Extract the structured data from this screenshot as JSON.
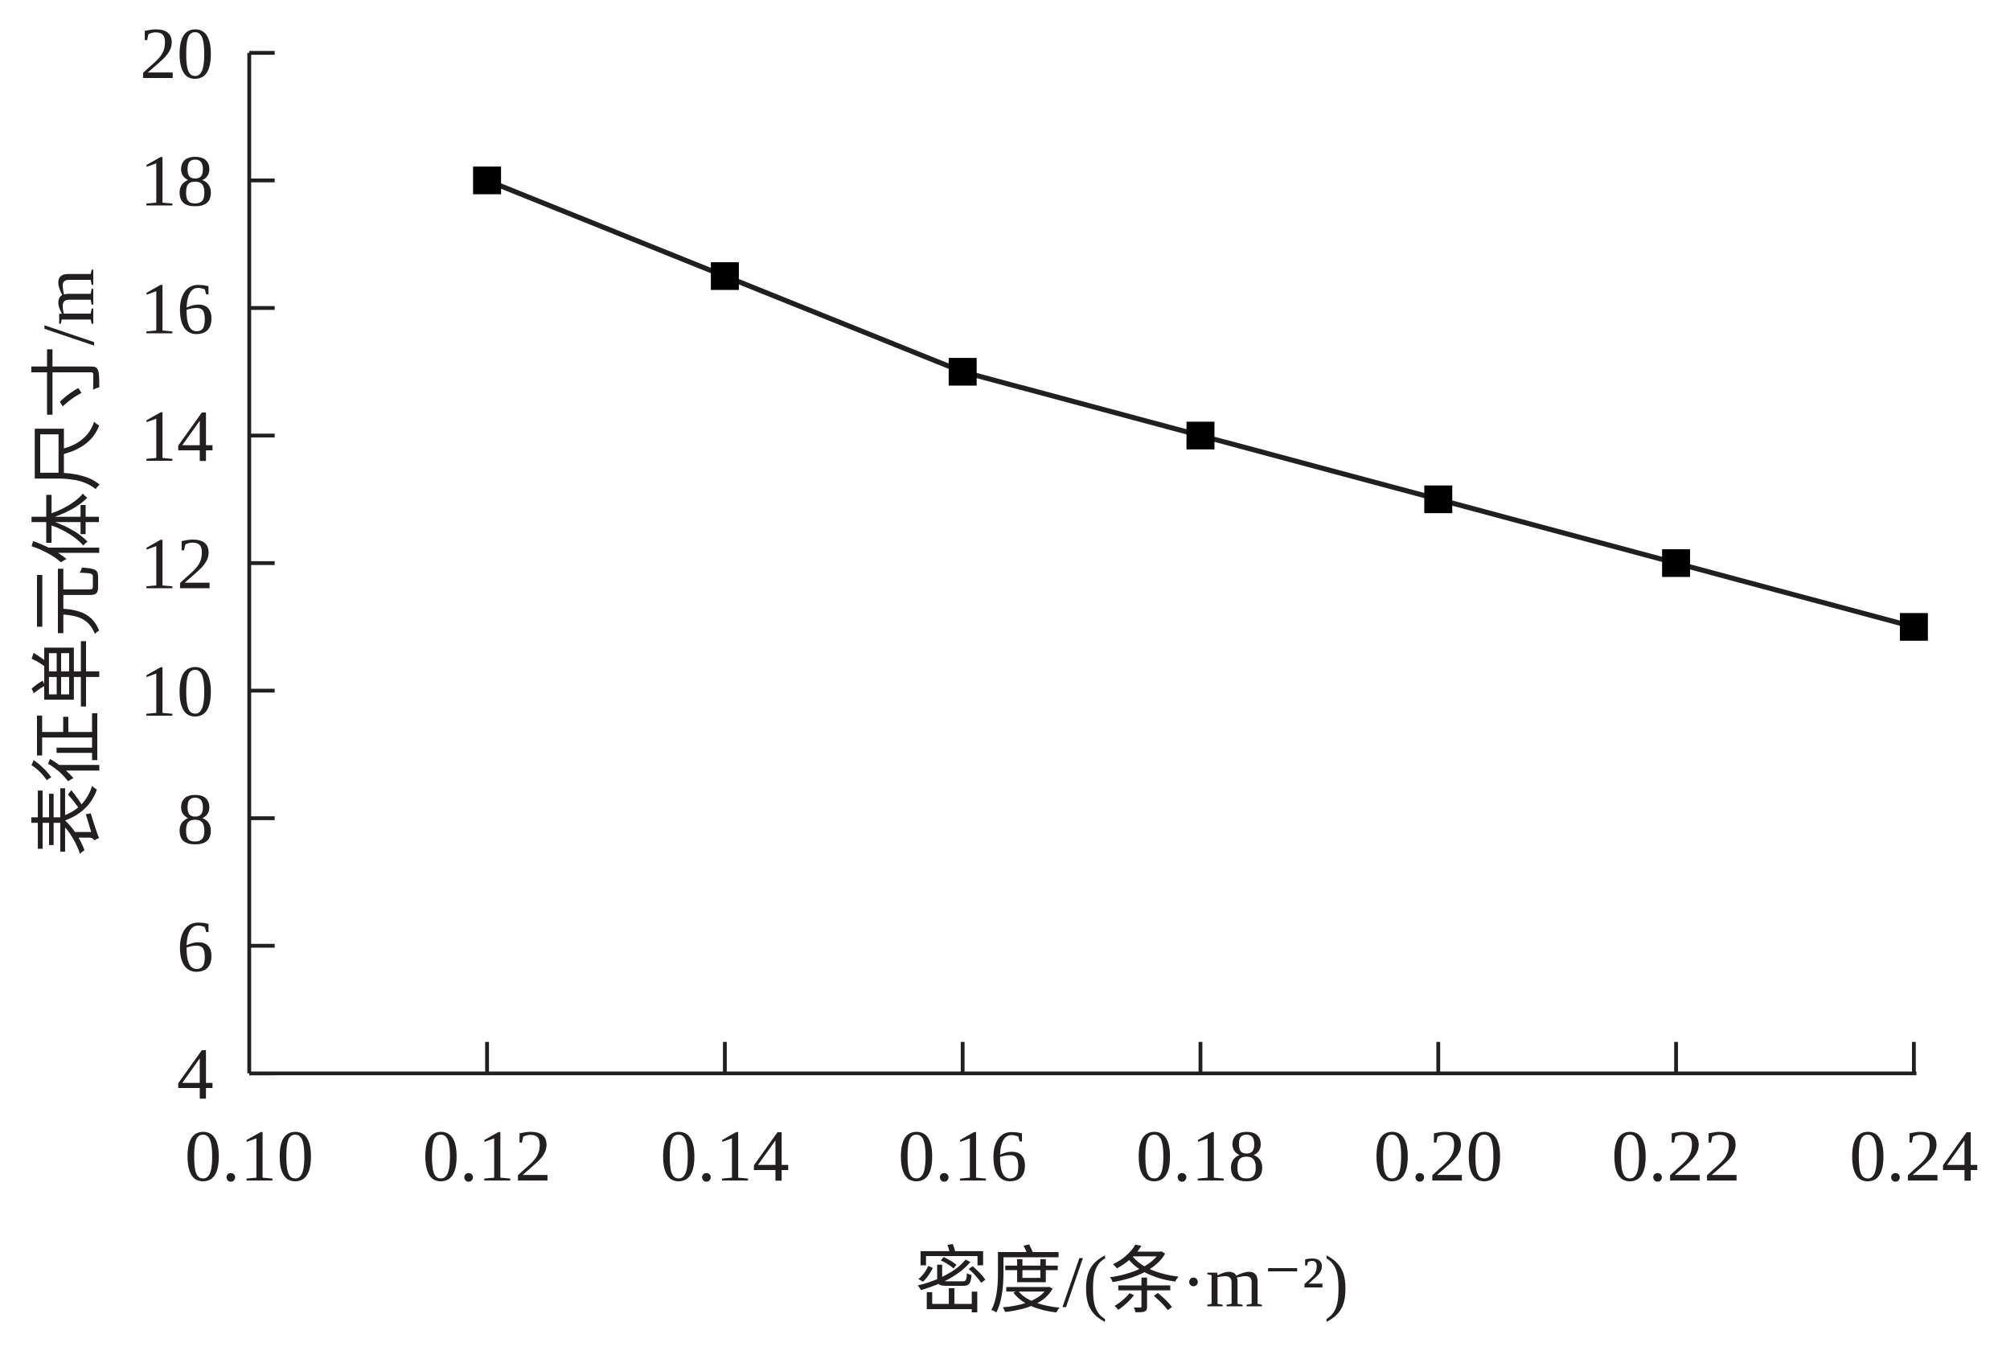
{
  "chart_data": {
    "type": "line",
    "y_label": "表征单元体尺寸/m",
    "x_label": "密度/(条·m⁻²)",
    "x": [
      0.12,
      0.14,
      0.16,
      0.18,
      0.2,
      0.22,
      0.24
    ],
    "values": [
      18,
      16.5,
      15,
      14,
      13,
      12,
      11
    ],
    "color": "#000000",
    "xlim": [
      0.1,
      0.24
    ],
    "xticks": [
      {
        "value": 0.1,
        "label": "0.10"
      },
      0.12,
      0.14,
      0.16,
      0.18,
      {
        "value": 0.2,
        "label": "0.20"
      },
      0.22,
      0.24
    ],
    "ylim": [
      4,
      20
    ],
    "yticks": [
      4,
      6,
      8,
      10,
      12,
      14,
      16,
      18,
      20
    ]
  }
}
